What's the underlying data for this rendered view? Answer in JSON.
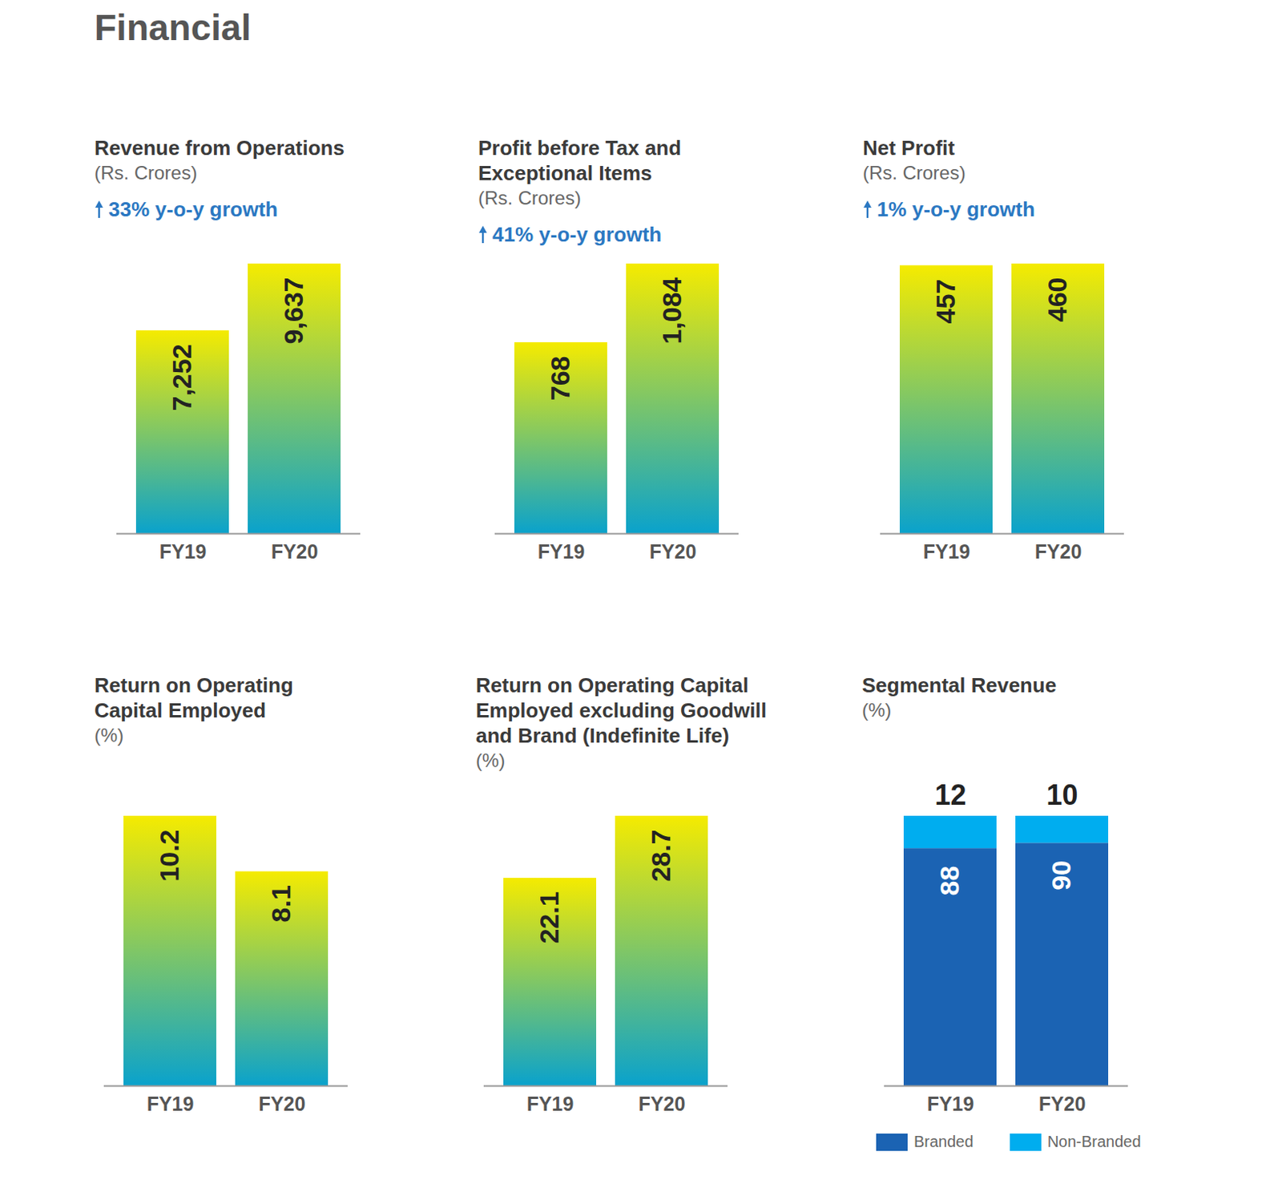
{
  "title": "Financial",
  "chart_data": [
    {
      "type": "bar",
      "title": "Revenue from Operations",
      "subtitle": "(Rs. Crores)",
      "annotation": "33% y-o-y growth",
      "categories": [
        "FY19",
        "FY20"
      ],
      "values": [
        7252,
        9637
      ],
      "value_labels": [
        "7,252",
        "9,637"
      ],
      "color": [
        "#f5eb00",
        "#0aa2cc"
      ],
      "ylim": [
        0,
        9637
      ],
      "data_labels": true,
      "tick_labels": "x"
    },
    {
      "type": "bar",
      "title": "Profit before Tax and Exceptional Items",
      "subtitle": "(Rs. Crores)",
      "annotation": "41% y-o-y growth",
      "categories": [
        "FY19",
        "FY20"
      ],
      "values": [
        768,
        1084
      ],
      "value_labels": [
        "768",
        "1,084"
      ],
      "color": [
        "#f5eb00",
        "#0aa2cc"
      ],
      "ylim": [
        0,
        1084
      ],
      "data_labels": true,
      "tick_labels": "x"
    },
    {
      "type": "bar",
      "title": "Net Profit",
      "subtitle": "(Rs. Crores)",
      "annotation": "1% y-o-y growth",
      "categories": [
        "FY19",
        "FY20"
      ],
      "values": [
        457,
        460
      ],
      "color": [
        "#f5eb00",
        "#0aa2cc"
      ],
      "ylim": [
        0,
        460
      ],
      "data_labels": true,
      "tick_labels": "x"
    },
    {
      "type": "bar",
      "title": "Return on Operating Capital Employed",
      "subtitle": "(%)",
      "categories": [
        "FY19",
        "FY20"
      ],
      "values": [
        10.2,
        8.1
      ],
      "color": [
        "#f5eb00",
        "#0aa2cc"
      ],
      "ylim": [
        0,
        10.2
      ],
      "data_labels": true,
      "tick_labels": "x"
    },
    {
      "type": "bar",
      "title": "Return on Operating Capital Employed excluding Goodwill and Brand (Indefinite Life)",
      "subtitle": "(%)",
      "categories": [
        "FY19",
        "FY20"
      ],
      "values": [
        22.1,
        28.7
      ],
      "color": [
        "#f5eb00",
        "#0aa2cc"
      ],
      "ylim": [
        0,
        28.7
      ],
      "data_labels": true,
      "tick_labels": "x"
    },
    {
      "type": "bar",
      "title": "Segmental Revenue",
      "subtitle": "(%)",
      "stacked": true,
      "categories": [
        "FY19",
        "FY20"
      ],
      "series": [
        {
          "name": "Branded",
          "color": "#1b63b3",
          "values": [
            88,
            90
          ]
        },
        {
          "name": "Non-Branded",
          "color": "#00adef",
          "values": [
            12,
            10
          ]
        }
      ],
      "ylim": [
        0,
        100
      ],
      "data_labels": true,
      "tick_labels": "x",
      "legend": "bottom"
    }
  ]
}
